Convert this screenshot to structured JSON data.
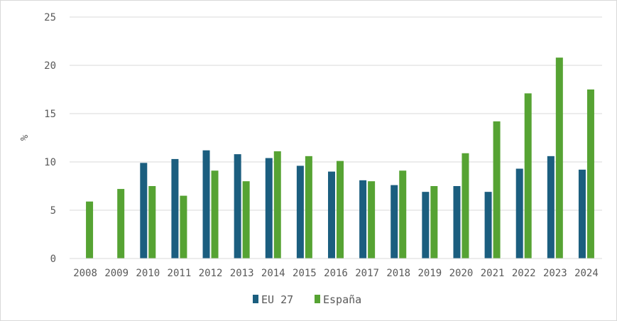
{
  "chart_data": {
    "type": "bar",
    "title": "",
    "xlabel": "",
    "ylabel": "%",
    "ylim": [
      0,
      25
    ],
    "yticks": [
      "0",
      "5",
      "10",
      "15",
      "20",
      "25"
    ],
    "grid": true,
    "legend_position": "bottom",
    "categories": [
      "2008",
      "2009",
      "2010",
      "2011",
      "2012",
      "2013",
      "2014",
      "2015",
      "2016",
      "2017",
      "2018",
      "2019",
      "2020",
      "2021",
      "2022",
      "2023",
      "2024"
    ],
    "series": [
      {
        "name": "EU 27",
        "color": "#1b5e7f",
        "values": [
          null,
          null,
          9.9,
          10.3,
          11.2,
          10.8,
          10.4,
          9.6,
          9.0,
          8.1,
          7.6,
          6.9,
          7.5,
          6.9,
          9.3,
          10.6,
          9.2
        ]
      },
      {
        "name": "España",
        "color": "#56a333",
        "values": [
          5.9,
          7.2,
          7.5,
          6.5,
          9.1,
          8.0,
          11.1,
          10.6,
          10.1,
          8.0,
          9.1,
          7.5,
          10.9,
          14.2,
          17.1,
          20.8,
          17.5
        ]
      }
    ]
  }
}
